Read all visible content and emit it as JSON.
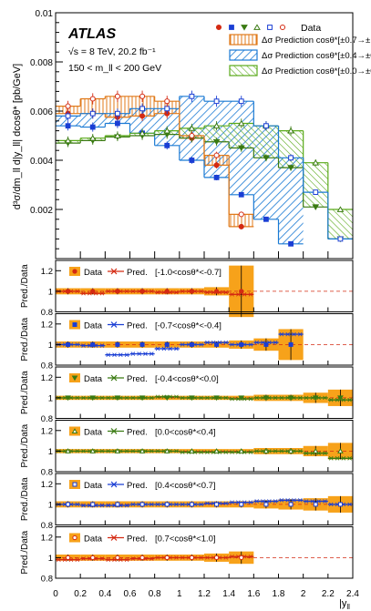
{
  "chart_data": {
    "type": "line",
    "bins": [
      0,
      0.2,
      0.4,
      0.6,
      0.8,
      1.0,
      1.2,
      1.4,
      1.6,
      1.8,
      2.0,
      2.2,
      2.4
    ],
    "x_ticks": [
      "0",
      "0.2",
      "0.4",
      "0.6",
      "0.8",
      "1",
      "1.2",
      "1.4",
      "1.6",
      "1.8",
      "2",
      "2.2",
      "2.4"
    ],
    "xlabel": "|y",
    "xlabel_sub": "ll",
    "main": {
      "ylabel": "d³σ/dm_ll d|y_ll| dcosθ* [pb/GeV]",
      "ylim": [
        0,
        0.01
      ],
      "y_ticks": [
        "0.002",
        "0.004",
        "0.006",
        "0.008",
        "0.01"
      ],
      "y_tick_values": [
        0.002,
        0.004,
        0.006,
        0.008,
        0.01
      ],
      "atlas_label": "ATLAS",
      "energy_label": "√s = 8 TeV, 20.2 fb⁻¹",
      "mass_label": "150 < m_ll < 200 GeV",
      "legend_data_label": "Data",
      "series": [
        {
          "marker": "circle",
          "color": "#d42a12",
          "values": [
            0.0059,
            0.0059,
            0.00575,
            0.0058,
            0.0059,
            0.0049,
            0.0038,
            0.0013,
            0.0,
            0.0,
            0.0,
            0.0
          ]
        },
        {
          "marker": "square",
          "color": "#1a3ed4",
          "values": [
            0.0054,
            0.00535,
            0.0055,
            0.0051,
            0.0046,
            0.004,
            0.0033,
            0.0026,
            0.0016,
            0.0006,
            0.0,
            0.0
          ]
        },
        {
          "marker": "tri-down",
          "color": "#3a7a12",
          "values": [
            0.0047,
            0.0048,
            0.00495,
            0.005,
            0.00505,
            0.0049,
            0.00475,
            0.0045,
            0.0041,
            0.0037,
            0.0021,
            0.0008
          ]
        },
        {
          "marker": "tri-up",
          "color": "#3a7a12",
          "values": [
            0.0048,
            0.0049,
            0.005,
            0.0051,
            0.0052,
            0.0053,
            0.0054,
            0.0055,
            0.0054,
            0.0052,
            0.0039,
            0.002
          ]
        },
        {
          "marker": "open-square",
          "color": "#1a3ed4",
          "values": [
            0.0058,
            0.0059,
            0.0059,
            0.0061,
            0.0061,
            0.0066,
            0.0064,
            0.0064,
            0.0054,
            0.0041,
            0.0027,
            0.0008
          ]
        },
        {
          "marker": "open-circle",
          "color": "#d42a12",
          "values": [
            0.0062,
            0.0065,
            0.0066,
            0.0066,
            0.0064,
            0.005,
            0.0042,
            0.0018,
            0.0,
            0.0,
            0.0,
            0.0
          ]
        }
      ],
      "bands": [
        {
          "label": "Δσ Prediction cosθ*[±0.7→±1.0]",
          "color": "#e07a1a",
          "hatch": "vertical",
          "low": [
            0.0059,
            0.0059,
            0.00575,
            0.0058,
            0.0059,
            0.0049,
            0.0038,
            0.0013
          ],
          "high": [
            0.0062,
            0.0065,
            0.0066,
            0.0066,
            0.0064,
            0.005,
            0.0042,
            0.0018
          ]
        },
        {
          "label": "Δσ Prediction cosθ*[±0.4→±0.7]",
          "color": "#1a7ad4",
          "hatch": "diag",
          "low": [
            0.0054,
            0.00535,
            0.0055,
            0.0051,
            0.0046,
            0.004,
            0.0033,
            0.0026,
            0.0016,
            0.0006
          ],
          "high": [
            0.0058,
            0.0059,
            0.0059,
            0.0061,
            0.0061,
            0.0066,
            0.0064,
            0.0064,
            0.0054,
            0.0041
          ]
        },
        {
          "label": "Δσ Prediction cosθ*[±0.0→±0.4]",
          "color": "#5aaa1a",
          "hatch": "diag",
          "low": [
            0.0047,
            0.0048,
            0.00495,
            0.005,
            0.00505,
            0.0049,
            0.00475,
            0.0045,
            0.0041,
            0.0037,
            0.0021,
            0.0008
          ],
          "high": [
            0.0048,
            0.0049,
            0.005,
            0.0051,
            0.0052,
            0.0053,
            0.0054,
            0.0055,
            0.0054,
            0.0052,
            0.0039,
            0.002
          ]
        }
      ]
    },
    "ratio_panels": [
      {
        "legend_data": "Data",
        "legend_pred": "Pred.",
        "range_label": "[-1.0<cosθ*<-0.7]",
        "color": "#d42a12",
        "marker": "circle",
        "n_bins": 8,
        "ratios": [
          1.0,
          0.98,
          1.0,
          1.0,
          0.99,
          1.0,
          0.99,
          0.97
        ],
        "uncert": [
          0.03,
          0.03,
          0.03,
          0.03,
          0.03,
          0.03,
          0.04,
          0.25
        ]
      },
      {
        "legend_data": "Data",
        "legend_pred": "Pred.",
        "range_label": "[-0.7<cosθ*<-0.4]",
        "color": "#1a3ed4",
        "marker": "square",
        "n_bins": 10,
        "ratios": [
          1.0,
          0.99,
          0.9,
          0.91,
          0.96,
          1.0,
          1.02,
          1.0,
          1.02,
          1.1
        ],
        "uncert": [
          0.03,
          0.03,
          0.03,
          0.03,
          0.03,
          0.03,
          0.03,
          0.04,
          0.06,
          0.15
        ]
      },
      {
        "legend_data": "Data",
        "legend_pred": "Pred.",
        "range_label": "[-0.4<cosθ*<0.0]",
        "color": "#3a7a12",
        "marker": "tri-down",
        "n_bins": 12,
        "ratios": [
          1.0,
          1.0,
          1.0,
          1.0,
          1.01,
          1.0,
          1.0,
          0.99,
          1.0,
          1.0,
          1.0,
          0.98
        ],
        "uncert": [
          0.02,
          0.02,
          0.02,
          0.02,
          0.02,
          0.02,
          0.02,
          0.02,
          0.03,
          0.03,
          0.05,
          0.08
        ]
      },
      {
        "legend_data": "Data",
        "legend_pred": "Pred.",
        "range_label": "[0.0<cosθ*<0.4]",
        "color": "#3a7a12",
        "marker": "tri-up",
        "n_bins": 12,
        "ratios": [
          1.0,
          1.0,
          1.0,
          1.0,
          1.0,
          0.99,
          0.99,
          0.99,
          1.0,
          1.0,
          0.98,
          0.93
        ],
        "uncert": [
          0.02,
          0.02,
          0.02,
          0.02,
          0.02,
          0.02,
          0.02,
          0.02,
          0.03,
          0.03,
          0.05,
          0.08
        ]
      },
      {
        "legend_data": "Data",
        "legend_pred": "Pred.",
        "range_label": "[0.4<cosθ*<0.7]",
        "color": "#1a3ed4",
        "marker": "open-square",
        "n_bins": 12,
        "ratios": [
          1.0,
          0.99,
          0.99,
          1.0,
          1.0,
          1.0,
          1.01,
          1.02,
          1.03,
          1.04,
          1.03,
          1.0
        ],
        "uncert": [
          0.03,
          0.03,
          0.03,
          0.03,
          0.03,
          0.03,
          0.03,
          0.03,
          0.04,
          0.05,
          0.06,
          0.08
        ]
      },
      {
        "legend_data": "Data",
        "legend_pred": "Pred.",
        "range_label": "[0.7<cosθ*<1.0]",
        "color": "#d42a12",
        "marker": "open-circle",
        "n_bins": 8,
        "ratios": [
          0.98,
          0.99,
          0.98,
          0.99,
          1.0,
          1.0,
          1.0,
          1.01
        ],
        "uncert": [
          0.03,
          0.03,
          0.03,
          0.03,
          0.03,
          0.03,
          0.04,
          0.06
        ]
      }
    ],
    "ratio_ylabel": "Pred./Data",
    "ratio_ylim": [
      0.8,
      1.3
    ],
    "ratio_y_ticks": [
      "0.8",
      "1",
      "1.2"
    ],
    "ratio_y_tick_values": [
      0.8,
      1.0,
      1.2
    ],
    "band_color": "#f7a21a",
    "reference_line_color": "#d42a12"
  }
}
